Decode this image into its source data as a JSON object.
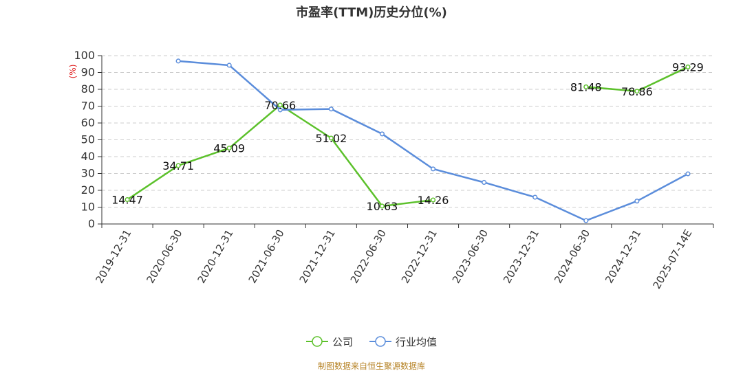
{
  "chart_data": {
    "type": "line",
    "title": "市盈率(TTM)历史分位(%)",
    "ylabel": "(%)",
    "ylim": [
      0,
      100
    ],
    "yticks": [
      0,
      10,
      20,
      30,
      40,
      50,
      60,
      70,
      80,
      90,
      100
    ],
    "grid": true,
    "legend_position": "bottom",
    "categories": [
      "2019-12-31",
      "2020-06-30",
      "2020-12-31",
      "2021-06-30",
      "2021-12-31",
      "2022-06-30",
      "2022-12-31",
      "2023-06-30",
      "2023-12-31",
      "2024-06-30",
      "2024-12-31",
      "2025-07-14E"
    ],
    "series": [
      {
        "name": "公司",
        "color": "#5cc12b",
        "show_labels": true,
        "values": [
          14.47,
          34.71,
          45.09,
          70.66,
          51.02,
          10.63,
          14.26,
          null,
          null,
          81.48,
          78.86,
          93.29
        ],
        "labels": [
          "14.47",
          "34.71",
          "45.09",
          "70.66",
          "51.02",
          "10.63",
          "14.26",
          "",
          "",
          "81.48",
          "78.86",
          "93.29"
        ]
      },
      {
        "name": "行业均值",
        "color": "#5b8ddb",
        "show_labels": false,
        "values": [
          null,
          96.8,
          94.3,
          67.8,
          68.3,
          53.5,
          32.7,
          24.7,
          15.9,
          2.0,
          13.6,
          29.8
        ]
      }
    ]
  },
  "source": "制图数据来自恒生聚源数据库"
}
